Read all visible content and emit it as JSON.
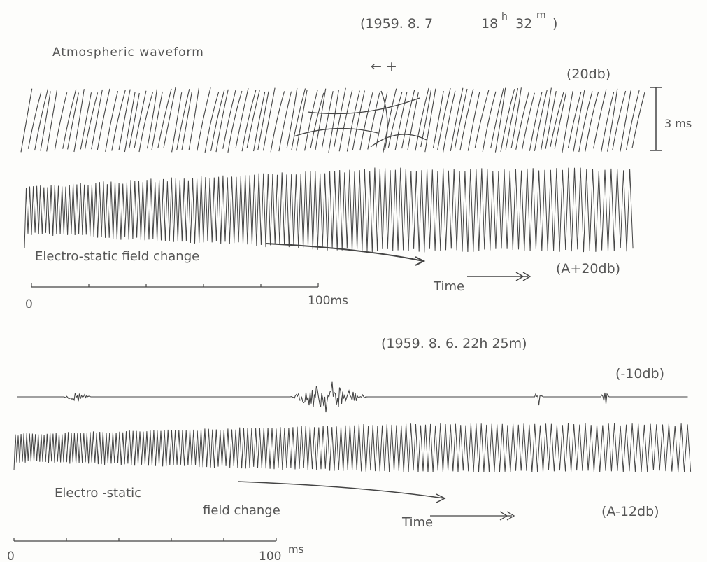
{
  "panel_1": {
    "date": "(1959. 8. 7",
    "hour": "18",
    "hour_unit": "h",
    "minute": "32",
    "minute_unit": "m",
    "close": ")",
    "waveform_label": "Atmospheric waveform",
    "direction": "← +",
    "gain_top": "(20db)",
    "scale_bar": "3 ms",
    "field_label": "Electro-static field change",
    "gain_bottom": "(A+20db)",
    "time_label": "Time",
    "scale_start": "0",
    "scale_end": "100ms"
  },
  "panel_2": {
    "header": "(1959. 8. 6.  22h  25m)",
    "gain_top": "(-10db)",
    "field_label_1": "Electro -static",
    "field_label_2": "field change",
    "gain_bottom": "(A-12db)",
    "time_label": "Time",
    "scale_start": "0",
    "scale_end": "100",
    "scale_unit": "ms"
  }
}
